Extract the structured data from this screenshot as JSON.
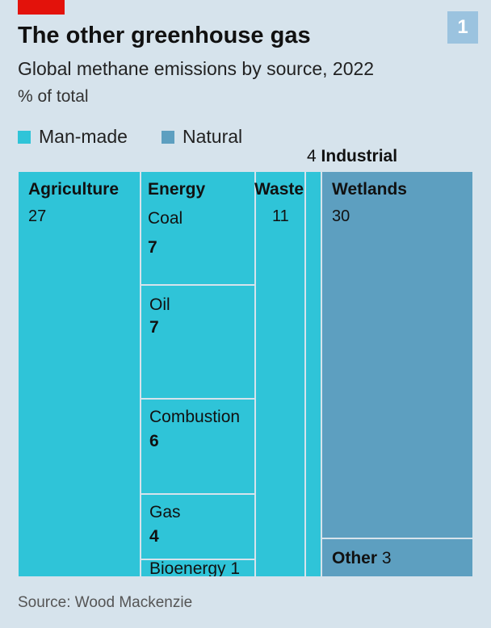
{
  "header": {
    "title": "The other greenhouse gas",
    "subtitle": "Global methane emissions by source, 2022",
    "unit": "% of total",
    "badge": "1"
  },
  "legend": [
    {
      "label": "Man-made",
      "color": "#2fc4d8"
    },
    {
      "label": "Natural",
      "color": "#5d9fc0"
    }
  ],
  "source": "Source: Wood Mackenzie",
  "chart_data": {
    "type": "treemap",
    "title": "The other greenhouse gas",
    "subtitle": "Global methane emissions by source, 2022",
    "unit": "% of total",
    "groups": [
      {
        "name": "Man-made",
        "color": "#2fc4d8",
        "items": [
          {
            "name": "Agriculture",
            "value": 27
          },
          {
            "name": "Energy",
            "children": [
              {
                "name": "Coal",
                "value": 7
              },
              {
                "name": "Oil",
                "value": 7
              },
              {
                "name": "Combustion",
                "value": 6
              },
              {
                "name": "Gas",
                "value": 4
              },
              {
                "name": "Bioenergy",
                "value": 1
              }
            ]
          },
          {
            "name": "Waste",
            "value": 11
          },
          {
            "name": "Industrial",
            "value": 4
          }
        ]
      },
      {
        "name": "Natural",
        "color": "#5d9fc0",
        "items": [
          {
            "name": "Wetlands",
            "value": 30
          },
          {
            "name": "Other",
            "value": 3
          }
        ]
      }
    ],
    "labels": {
      "agriculture": {
        "name": "Agriculture",
        "value": "27"
      },
      "energy": "Energy",
      "coal": {
        "name": "Coal",
        "value": "7"
      },
      "oil": {
        "name": "Oil",
        "value": "7"
      },
      "combustion": {
        "name": "Combustion",
        "value": "6"
      },
      "gas": {
        "name": "Gas",
        "value": "4"
      },
      "bioenergy": {
        "name": "Bioenergy",
        "value": "1"
      },
      "waste": {
        "name": "Waste",
        "value": "11"
      },
      "industrial": {
        "name": "Industrial",
        "value": "4"
      },
      "wetlands": {
        "name": "Wetlands",
        "value": "30"
      },
      "other": {
        "name": "Other",
        "value": "3"
      }
    }
  }
}
